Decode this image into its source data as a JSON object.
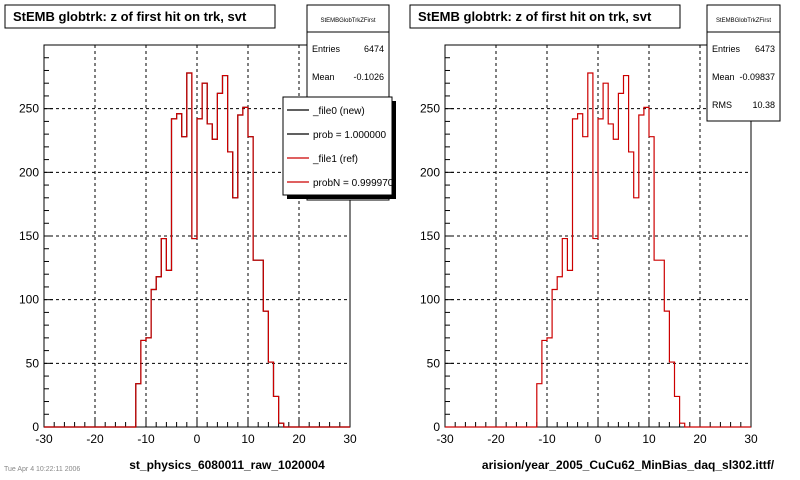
{
  "page": {
    "footer_text": "Tue Apr 4 10:22:11 2006"
  },
  "chart_data": [
    {
      "type": "histogram",
      "title": "StEMB globtrk: z of first hit on trk, svt",
      "xlabel": "st_physics_6080011_raw_1020004",
      "ylabel": "",
      "xlim": [
        -30,
        30
      ],
      "ylim": [
        0,
        300
      ],
      "x_ticks": [
        -30,
        -20,
        -10,
        0,
        10,
        20,
        30
      ],
      "y_ticks": [
        0,
        50,
        100,
        150,
        200,
        250
      ],
      "grid": true,
      "bin_edges": [
        -30,
        -29,
        -28,
        -27,
        -26,
        -25,
        -24,
        -23,
        -22,
        -21,
        -20,
        -19,
        -18,
        -17,
        -16,
        -15,
        -14,
        -13,
        -12,
        -11,
        -10,
        -9,
        -8,
        -7,
        -6,
        -5,
        -4,
        -3,
        -2,
        -1,
        0,
        1,
        2,
        3,
        4,
        5,
        6,
        7,
        8,
        9,
        10,
        11,
        12,
        13,
        14,
        15,
        16,
        17,
        18,
        19,
        20,
        21,
        22,
        23,
        24,
        25,
        26,
        27,
        28,
        29,
        30
      ],
      "series": [
        {
          "name": "_file0 (new)",
          "color": "#000000",
          "values": [
            0,
            0,
            0,
            0,
            0,
            0,
            0,
            0,
            0,
            0,
            0,
            0,
            0,
            0,
            0,
            0,
            0,
            0,
            34,
            68,
            70,
            108,
            118,
            148,
            123,
            242,
            246,
            228,
            278,
            148,
            242,
            270,
            238,
            226,
            262,
            276,
            216,
            180,
            245,
            251,
            228,
            131,
            131,
            91,
            51,
            24,
            3,
            0,
            0,
            0,
            0,
            0,
            0,
            0,
            0,
            0,
            0,
            0,
            0,
            0
          ]
        },
        {
          "name": "_file1 (ref)",
          "color": "#cc0000",
          "values": [
            0,
            0,
            0,
            0,
            0,
            0,
            0,
            0,
            0,
            0,
            0,
            0,
            0,
            0,
            0,
            0,
            0,
            0,
            34,
            68,
            70,
            108,
            118,
            148,
            123,
            242,
            246,
            228,
            278,
            148,
            242,
            270,
            238,
            226,
            262,
            276,
            216,
            180,
            245,
            251,
            228,
            131,
            131,
            91,
            51,
            24,
            3,
            0,
            0,
            0,
            0,
            0,
            0,
            0,
            0,
            0,
            0,
            0,
            0,
            0
          ]
        }
      ],
      "stats": {
        "title": "StEMBGlobTrkZFirst",
        "entries": "6474",
        "mean": "-0.1026",
        "rms": ""
      },
      "legend": {
        "placement": "top-right",
        "entries": [
          "_file0 (new)",
          "prob = 1.000000",
          "_file1 (ref)",
          "probN = 0.999970"
        ]
      }
    },
    {
      "type": "histogram",
      "title": "StEMB globtrk: z of first hit on trk, svt",
      "xlabel": "arision/year_2005_CuCu62_MinBias_daq_sl302.ittf/",
      "ylabel": "",
      "xlim": [
        -30,
        30
      ],
      "ylim": [
        0,
        300
      ],
      "x_ticks": [
        -30,
        -20,
        -10,
        0,
        10,
        20,
        30
      ],
      "y_ticks": [
        0,
        50,
        100,
        150,
        200,
        250
      ],
      "grid": true,
      "bin_edges": [
        -30,
        -29,
        -28,
        -27,
        -26,
        -25,
        -24,
        -23,
        -22,
        -21,
        -20,
        -19,
        -18,
        -17,
        -16,
        -15,
        -14,
        -13,
        -12,
        -11,
        -10,
        -9,
        -8,
        -7,
        -6,
        -5,
        -4,
        -3,
        -2,
        -1,
        0,
        1,
        2,
        3,
        4,
        5,
        6,
        7,
        8,
        9,
        10,
        11,
        12,
        13,
        14,
        15,
        16,
        17,
        18,
        19,
        20,
        21,
        22,
        23,
        24,
        25,
        26,
        27,
        28,
        29,
        30
      ],
      "series": [
        {
          "name": "",
          "color": "#cc0000",
          "values": [
            0,
            0,
            0,
            0,
            0,
            0,
            0,
            0,
            0,
            0,
            0,
            0,
            0,
            0,
            0,
            0,
            0,
            0,
            34,
            68,
            70,
            108,
            118,
            148,
            123,
            242,
            246,
            228,
            278,
            148,
            242,
            270,
            238,
            226,
            262,
            276,
            216,
            180,
            245,
            251,
            228,
            131,
            131,
            91,
            51,
            24,
            3,
            0,
            0,
            0,
            0,
            0,
            0,
            0,
            0,
            0,
            0,
            0,
            0,
            0
          ]
        }
      ],
      "stats": {
        "title": "StEMBGlobTrkZFirst",
        "entries": "6473",
        "mean": "-0.09837",
        "rms": "10.38"
      }
    }
  ]
}
